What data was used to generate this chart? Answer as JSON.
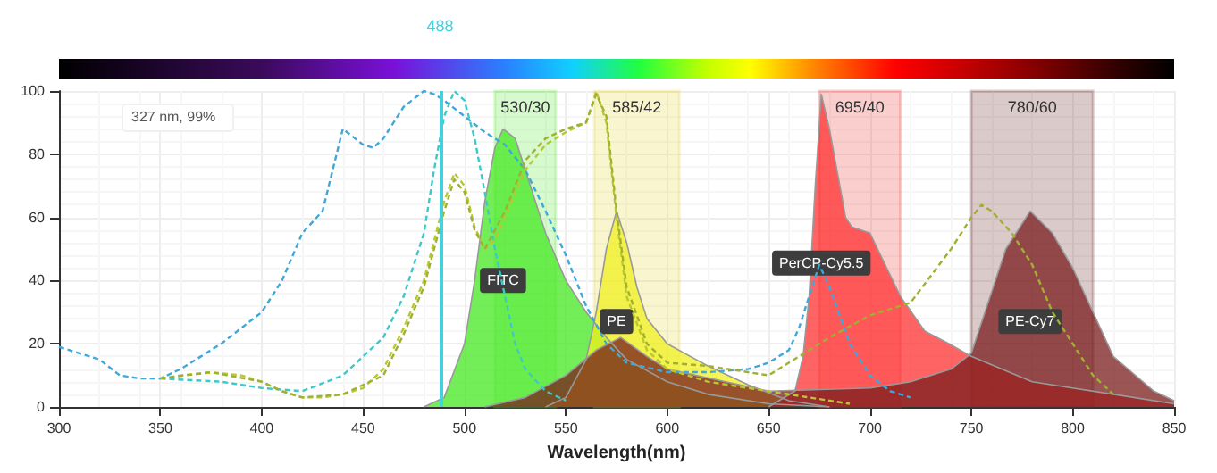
{
  "chart_data": {
    "type": "area",
    "xlabel": "Wavelength(nm)",
    "xlim": [
      300,
      850
    ],
    "xticks": [
      300,
      350,
      400,
      450,
      500,
      550,
      600,
      650,
      700,
      750,
      800,
      850
    ],
    "ylim": [
      0,
      100
    ],
    "yticks": [
      0,
      20,
      40,
      60,
      80,
      100
    ],
    "grid": true,
    "legend": false,
    "marker": "none",
    "annotations": [
      "327 nm, 99%"
    ],
    "ref_lines": [
      {
        "axis": "x",
        "value": 488,
        "label": "488",
        "color": "#3fd3e0"
      }
    ],
    "bands": [
      {
        "axis": "x",
        "from": 515,
        "to": 545,
        "label": "530/30",
        "color": "#5ee83a"
      },
      {
        "axis": "x",
        "from": 564,
        "to": 606,
        "label": "585/42",
        "color": "#e6d83a"
      },
      {
        "axis": "x",
        "from": 675,
        "to": 715,
        "label": "695/40",
        "color": "#ee3a3a"
      },
      {
        "axis": "x",
        "from": 750,
        "to": 810,
        "label": "780/60",
        "color": "#6e2a2a"
      }
    ],
    "series": [
      {
        "type": "line",
        "line_style": "dashed",
        "color": "#3fa8d8",
        "x": [
          300,
          310,
          320,
          330,
          340,
          350,
          360,
          370,
          380,
          390,
          400,
          410,
          420,
          430,
          440,
          450,
          455,
          460,
          470,
          480,
          485,
          490,
          500,
          510,
          520,
          530,
          540,
          550,
          560,
          570,
          580,
          600,
          620,
          640,
          650,
          660,
          665,
          670,
          675,
          680,
          690,
          700,
          710,
          720
        ],
        "values": [
          19,
          17,
          15,
          10,
          9,
          9,
          12,
          16,
          20,
          25,
          30,
          40,
          55,
          62,
          88,
          83,
          82,
          85,
          95,
          100,
          99,
          97,
          92,
          87,
          83,
          75,
          62,
          48,
          32,
          20,
          14,
          11,
          11,
          12,
          14,
          18,
          25,
          35,
          45,
          38,
          20,
          10,
          5,
          3
        ]
      },
      {
        "type": "line",
        "line_style": "dashed",
        "color": "#3fc8c8",
        "x": [
          350,
          380,
          400,
          420,
          440,
          460,
          470,
          480,
          485,
          490,
          495,
          500,
          505,
          510,
          515,
          520,
          525,
          530,
          540,
          550
        ],
        "values": [
          9,
          8,
          6,
          5,
          10,
          22,
          35,
          55,
          75,
          92,
          100,
          97,
          85,
          68,
          50,
          35,
          20,
          12,
          5,
          2
        ]
      },
      {
        "type": "line",
        "line_style": "dashed",
        "color": "#b8c830",
        "x": [
          350,
          360,
          375,
          390,
          400,
          410,
          420,
          430,
          440,
          450,
          460,
          470,
          480,
          490,
          495,
          500,
          505,
          510,
          515,
          520,
          530,
          540,
          550,
          560,
          565,
          570,
          575,
          580,
          590,
          600,
          620,
          650,
          670,
          690
        ],
        "values": [
          9,
          10,
          11,
          10,
          8,
          5,
          3,
          3,
          4,
          6,
          12,
          25,
          40,
          65,
          74,
          70,
          57,
          50,
          53,
          60,
          75,
          83,
          87,
          90,
          100,
          90,
          60,
          35,
          18,
          12,
          8,
          5,
          3,
          1
        ]
      },
      {
        "type": "line",
        "line_style": "dashed",
        "color": "#a0b030",
        "x": [
          350,
          375,
          400,
          410,
          420,
          440,
          460,
          470,
          480,
          490,
          495,
          500,
          505,
          510,
          520,
          530,
          540,
          550,
          560,
          565,
          570,
          575,
          580,
          590,
          600,
          620,
          650,
          680,
          700,
          720,
          740,
          750,
          755,
          760,
          770,
          780,
          790,
          800,
          810,
          820
        ],
        "values": [
          9,
          11,
          8,
          5,
          3,
          4,
          10,
          23,
          38,
          62,
          72,
          68,
          56,
          50,
          62,
          78,
          85,
          88,
          90,
          99,
          92,
          62,
          38,
          20,
          14,
          13,
          10,
          22,
          29,
          33,
          50,
          60,
          64,
          62,
          55,
          45,
          30,
          20,
          10,
          4
        ]
      },
      {
        "name": "FITC",
        "color": "#44e822",
        "x": [
          480,
          490,
          500,
          505,
          510,
          515,
          519,
          525,
          530,
          540,
          550,
          560,
          570,
          580,
          600,
          620,
          650,
          680
        ],
        "values": [
          0,
          3,
          20,
          40,
          65,
          82,
          88,
          85,
          75,
          55,
          40,
          30,
          22,
          15,
          8,
          4,
          1,
          0
        ]
      },
      {
        "name": "PE",
        "color": "#f0f020",
        "x": [
          540,
          550,
          560,
          565,
          570,
          575,
          580,
          585,
          590,
          600,
          620,
          640,
          660,
          680
        ],
        "values": [
          0,
          3,
          15,
          30,
          50,
          62,
          52,
          38,
          28,
          20,
          13,
          7,
          2,
          0
        ]
      },
      {
        "name": "PerCP-Cy5.5",
        "color": "#ff3030",
        "x": [
          650,
          663,
          667,
          670,
          673,
          676,
          680,
          688,
          691,
          700,
          715,
          727,
          739,
          750,
          780,
          850
        ],
        "values": [
          0,
          5,
          16,
          35,
          70,
          99,
          88,
          60,
          57,
          55,
          35,
          24,
          20,
          16,
          8,
          1
        ]
      },
      {
        "name": "PE-Cy7",
        "color": "#7a1c1c",
        "x": [
          510,
          530,
          550,
          565,
          577,
          590,
          600,
          650,
          700,
          720,
          740,
          750,
          767,
          779,
          790,
          800,
          820,
          840,
          850
        ],
        "values": [
          0,
          3,
          10,
          18,
          22,
          16,
          12,
          5,
          6,
          8,
          12,
          17,
          50,
          62,
          55,
          44,
          16,
          5,
          2
        ]
      }
    ]
  }
}
